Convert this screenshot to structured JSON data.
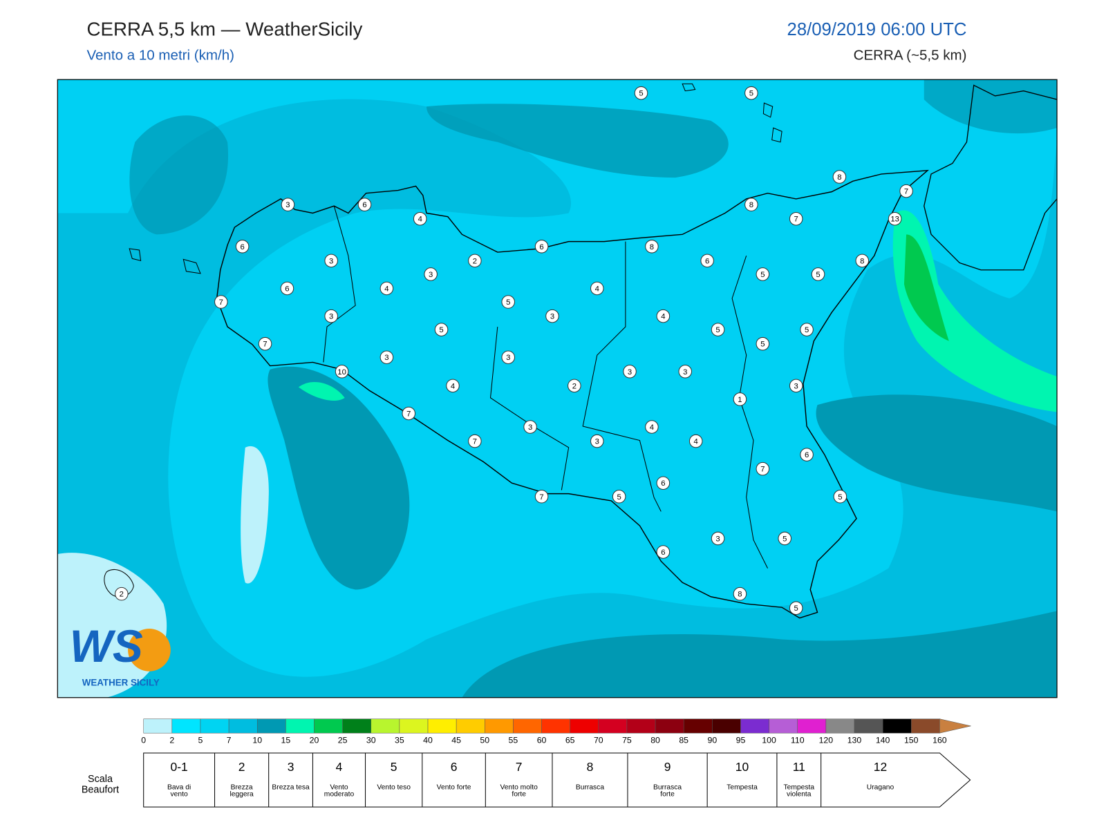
{
  "header": {
    "title": "CERRA 5,5 km — WeatherSicily",
    "subtitle": "Vento a 10 metri (km/h)",
    "datetime": "28/09/2019 06:00 UTC",
    "model": "CERRA (~5,5 km)"
  },
  "stations": {
    "values": [
      5,
      5,
      8,
      7,
      13,
      3,
      6,
      4,
      6,
      3,
      2,
      6,
      8,
      8,
      7,
      6,
      5,
      5,
      8,
      3,
      4,
      6,
      7,
      5,
      4,
      3,
      4,
      3,
      5,
      5,
      5,
      5,
      7,
      3,
      3,
      3,
      3,
      10,
      4,
      2,
      3,
      1,
      7,
      3,
      4,
      7,
      3,
      4,
      6,
      7,
      6,
      7,
      5,
      5,
      3,
      5,
      6,
      8,
      5,
      2
    ]
  },
  "colorbar": {
    "ticks": [
      0,
      2,
      5,
      7,
      10,
      15,
      20,
      25,
      30,
      35,
      40,
      45,
      50,
      55,
      60,
      65,
      70,
      75,
      80,
      85,
      90,
      95,
      100,
      110,
      120,
      130,
      140,
      150,
      160
    ],
    "colors": [
      "#bdf2fb",
      "#00e5ff",
      "#00d4f2",
      "#00bde0",
      "#0099b3",
      "#00f5b0",
      "#00c94f",
      "#00801a",
      "#b8f52e",
      "#dcf51f",
      "#ffee00",
      "#ffcc00",
      "#ff9900",
      "#ff6600",
      "#ff3300",
      "#ee0000",
      "#d40020",
      "#b30018",
      "#8c0010",
      "#660000",
      "#4a0000",
      "#7b2cd0",
      "#b65ed6",
      "#e020d0",
      "#888888",
      "#555555",
      "#000000",
      "#8a4a2a",
      "#c98040"
    ]
  },
  "beaufort": {
    "caption": "Scala Beaufort",
    "levels": [
      {
        "force": "0-1",
        "label": "Bava di vento"
      },
      {
        "force": 2,
        "label": "Brezza leggera"
      },
      {
        "force": 3,
        "label": "Brezza tesa"
      },
      {
        "force": 4,
        "label": "Vento moderato"
      },
      {
        "force": 5,
        "label": "Vento teso"
      },
      {
        "force": 6,
        "label": "Vento forte"
      },
      {
        "force": 7,
        "label": "Vento molto forte"
      },
      {
        "force": 8,
        "label": "Burrasca"
      },
      {
        "force": 9,
        "label": "Burrasca forte"
      },
      {
        "force": 10,
        "label": "Tempesta"
      },
      {
        "force": 11,
        "label": "Tempesta violenta"
      },
      {
        "force": 12,
        "label": "Uragano"
      }
    ]
  },
  "logo": {
    "mark": "WS",
    "name": "WEATHER SICILY"
  }
}
